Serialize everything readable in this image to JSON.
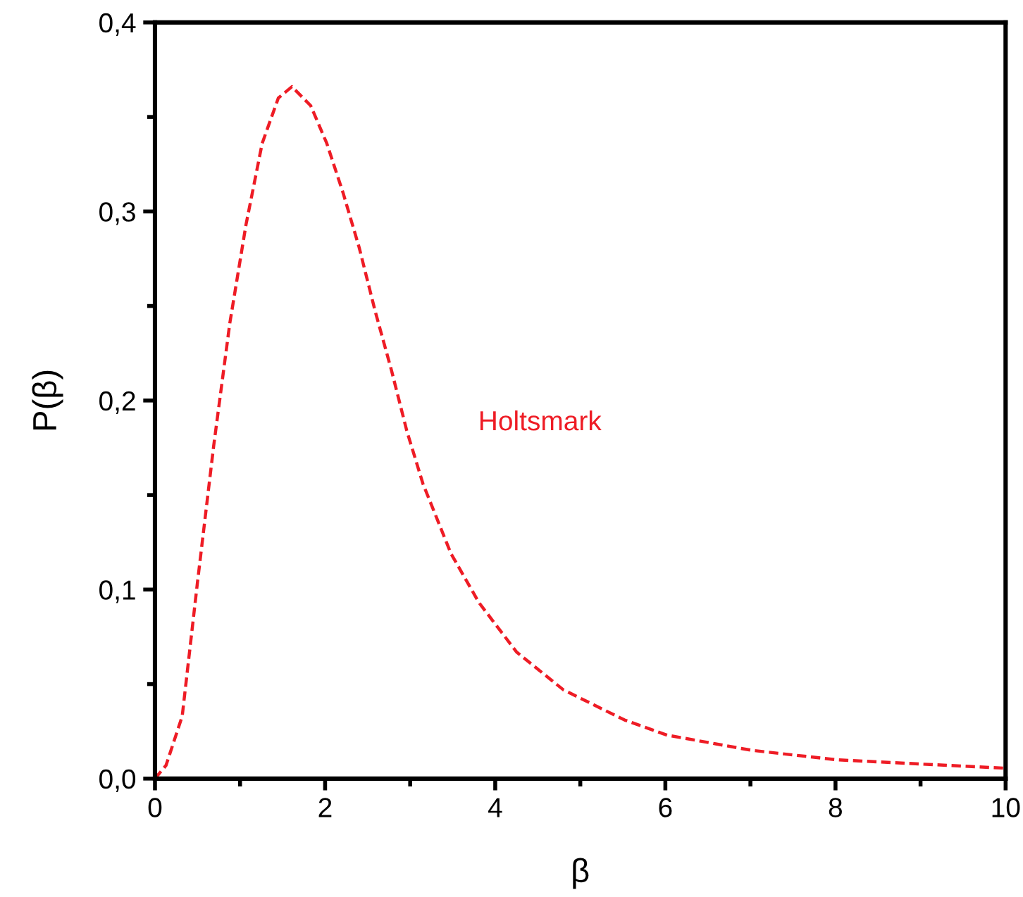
{
  "chart_data": {
    "type": "line",
    "xlabel": "β",
    "ylabel": "P(β)",
    "xlim": [
      0,
      10
    ],
    "ylim": [
      0,
      0.4
    ],
    "xticks": [
      0,
      2,
      4,
      6,
      8,
      10
    ],
    "yticks": [
      {
        "value": 0,
        "label": "0,0"
      },
      {
        "value": 0.1,
        "label": "0,1"
      },
      {
        "value": 0.2,
        "label": "0,2"
      },
      {
        "value": 0.3,
        "label": "0,3"
      },
      {
        "value": 0.4,
        "label": "0,4"
      }
    ],
    "grid": false,
    "legend": false,
    "marker": "none",
    "line_style": "dashed",
    "series": [
      {
        "name": "Holtsmark",
        "color": "#ee1c25",
        "x": [
          0,
          0.13,
          0.32,
          0.5,
          0.69,
          0.88,
          1.07,
          1.26,
          1.45,
          1.61,
          1.83,
          2.02,
          2.21,
          2.4,
          2.59,
          2.78,
          2.96,
          3.15,
          3.48,
          3.81,
          4.25,
          4.8,
          5.52,
          6.02,
          7.01,
          8.0,
          9.0,
          10
        ],
        "values": [
          0,
          0.007,
          0.033,
          0.104,
          0.176,
          0.241,
          0.293,
          0.336,
          0.36,
          0.366,
          0.356,
          0.336,
          0.31,
          0.281,
          0.247,
          0.216,
          0.184,
          0.156,
          0.119,
          0.093,
          0.067,
          0.047,
          0.031,
          0.023,
          0.015,
          0.01,
          0.0077,
          0.0055
        ]
      }
    ]
  }
}
